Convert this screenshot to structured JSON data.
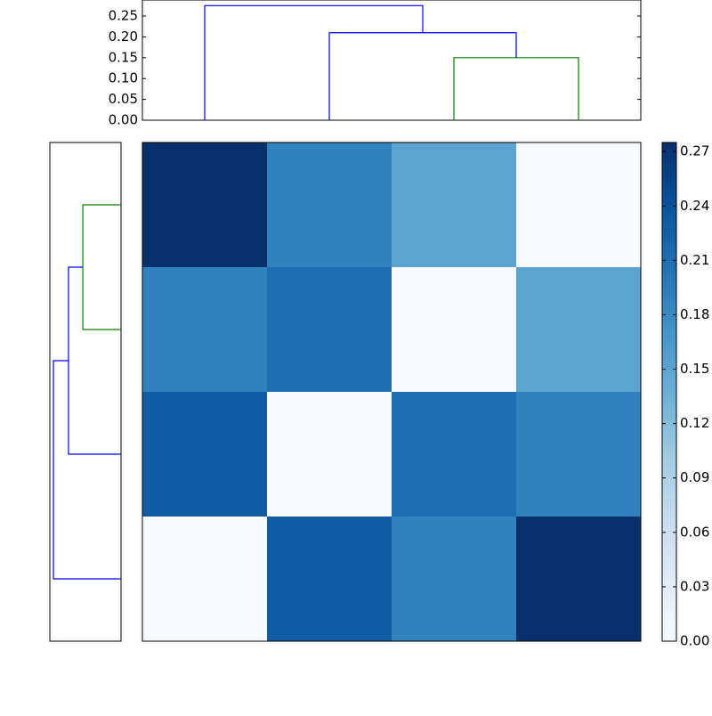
{
  "chart_data": {
    "type": "clustermap",
    "values": [
      [
        0.275,
        0.19,
        0.15,
        0
      ],
      [
        0.19,
        0.21,
        0,
        0.15
      ],
      [
        0.23,
        0,
        0.21,
        0.19
      ],
      [
        0,
        0.23,
        0.19,
        0.275
      ]
    ],
    "colormap": "Blues",
    "clim": [
      0,
      0.275
    ],
    "colorbar_ticks": [
      {
        "value": 0,
        "label": "0.00"
      },
      {
        "value": 0.03,
        "label": "0.03"
      },
      {
        "value": 0.06,
        "label": "0.06"
      },
      {
        "value": 0.09,
        "label": "0.09"
      },
      {
        "value": 0.12,
        "label": "0.12"
      },
      {
        "value": 0.15,
        "label": "0.15"
      },
      {
        "value": 0.18,
        "label": "0.18"
      },
      {
        "value": 0.21,
        "label": "0.21"
      },
      {
        "value": 0.24,
        "label": "0.24"
      },
      {
        "value": 0.27,
        "label": "0.27"
      }
    ],
    "col_dendrogram": {
      "ylim": [
        0,
        0.2885
      ],
      "yticks": [
        {
          "value": 0,
          "label": "0.00"
        },
        {
          "value": 0.05,
          "label": "0.05"
        },
        {
          "value": 0.1,
          "label": "0.10"
        },
        {
          "value": 0.15,
          "label": "0.15"
        },
        {
          "value": 0.2,
          "label": "0.20"
        },
        {
          "value": 0.25,
          "label": "0.25"
        }
      ],
      "links": [
        {
          "join": [
            2,
            3
          ],
          "height": 0.15,
          "color": "#008000"
        },
        {
          "join": [
            1,
            4
          ],
          "height": 0.21,
          "color": "#0000ff"
        },
        {
          "join": [
            0,
            5
          ],
          "height": 0.275,
          "color": "#0000ff"
        }
      ]
    },
    "row_dendrogram": {
      "xlim": [
        0,
        0.2885
      ],
      "links": [
        {
          "join": [
            0,
            1
          ],
          "height": 0.155,
          "color": "#008000"
        },
        {
          "join": [
            4,
            2
          ],
          "height": 0.213,
          "color": "#0000ff"
        },
        {
          "join": [
            5,
            3
          ],
          "height": 0.274,
          "color": "#0000ff"
        }
      ]
    }
  }
}
